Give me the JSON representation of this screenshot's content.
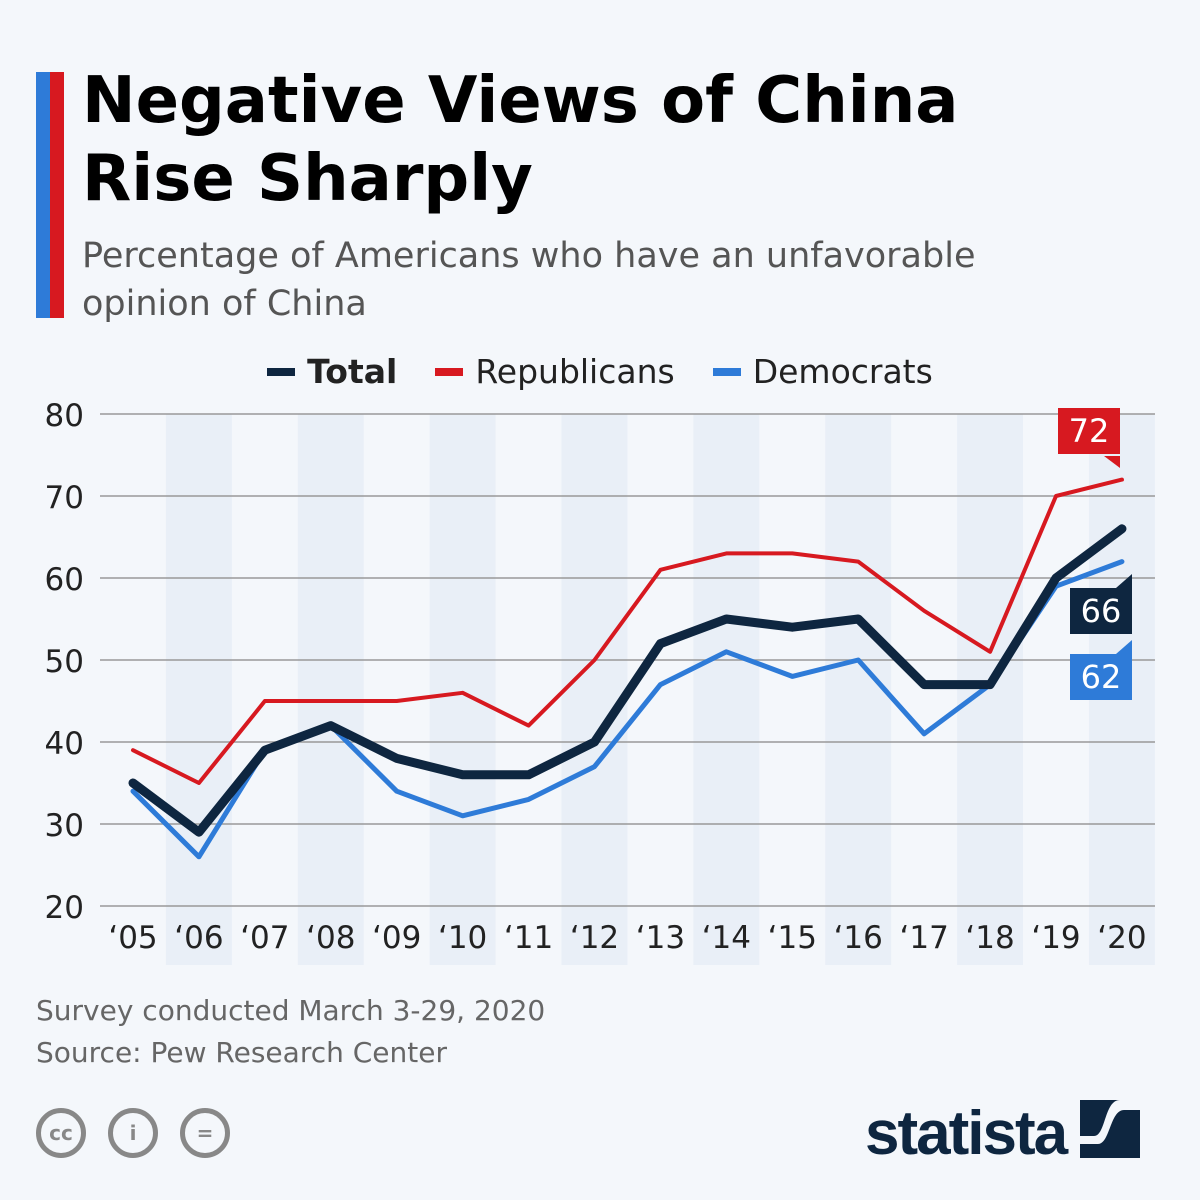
{
  "title": "Negative Views of China Rise Sharply",
  "subtitle": "Percentage of Americans who have an unfavorable opinion of China",
  "footer": {
    "note": "Survey conducted March 3-29, 2020",
    "source": "Source: Pew Research Center",
    "brand": "statista"
  },
  "chart_data": {
    "type": "line",
    "categories": [
      "‘05",
      "‘06",
      "‘07",
      "‘08",
      "‘09",
      "‘10",
      "‘11",
      "‘12",
      "‘13",
      "‘14",
      "‘15",
      "‘16",
      "‘17",
      "‘18",
      "‘19",
      "‘20"
    ],
    "ylim": [
      20,
      80
    ],
    "yticks": [
      20,
      30,
      40,
      50,
      60,
      70,
      80
    ],
    "grid": true,
    "legend_position": "top",
    "series": [
      {
        "name": "Total",
        "color": "#0e2640",
        "values": [
          35,
          29,
          39,
          42,
          38,
          36,
          36,
          40,
          52,
          55,
          54,
          55,
          47,
          47,
          60,
          66
        ],
        "end_label": "66"
      },
      {
        "name": "Republicans",
        "color": "#d71920",
        "values": [
          39,
          35,
          45,
          45,
          45,
          46,
          42,
          50,
          61,
          63,
          63,
          62,
          56,
          51,
          70,
          72
        ],
        "end_label": "72"
      },
      {
        "name": "Democrats",
        "color": "#2e7bd8",
        "values": [
          34,
          26,
          39,
          42,
          34,
          31,
          33,
          37,
          47,
          51,
          48,
          50,
          41,
          47,
          59,
          62
        ],
        "end_label": "62"
      }
    ]
  }
}
